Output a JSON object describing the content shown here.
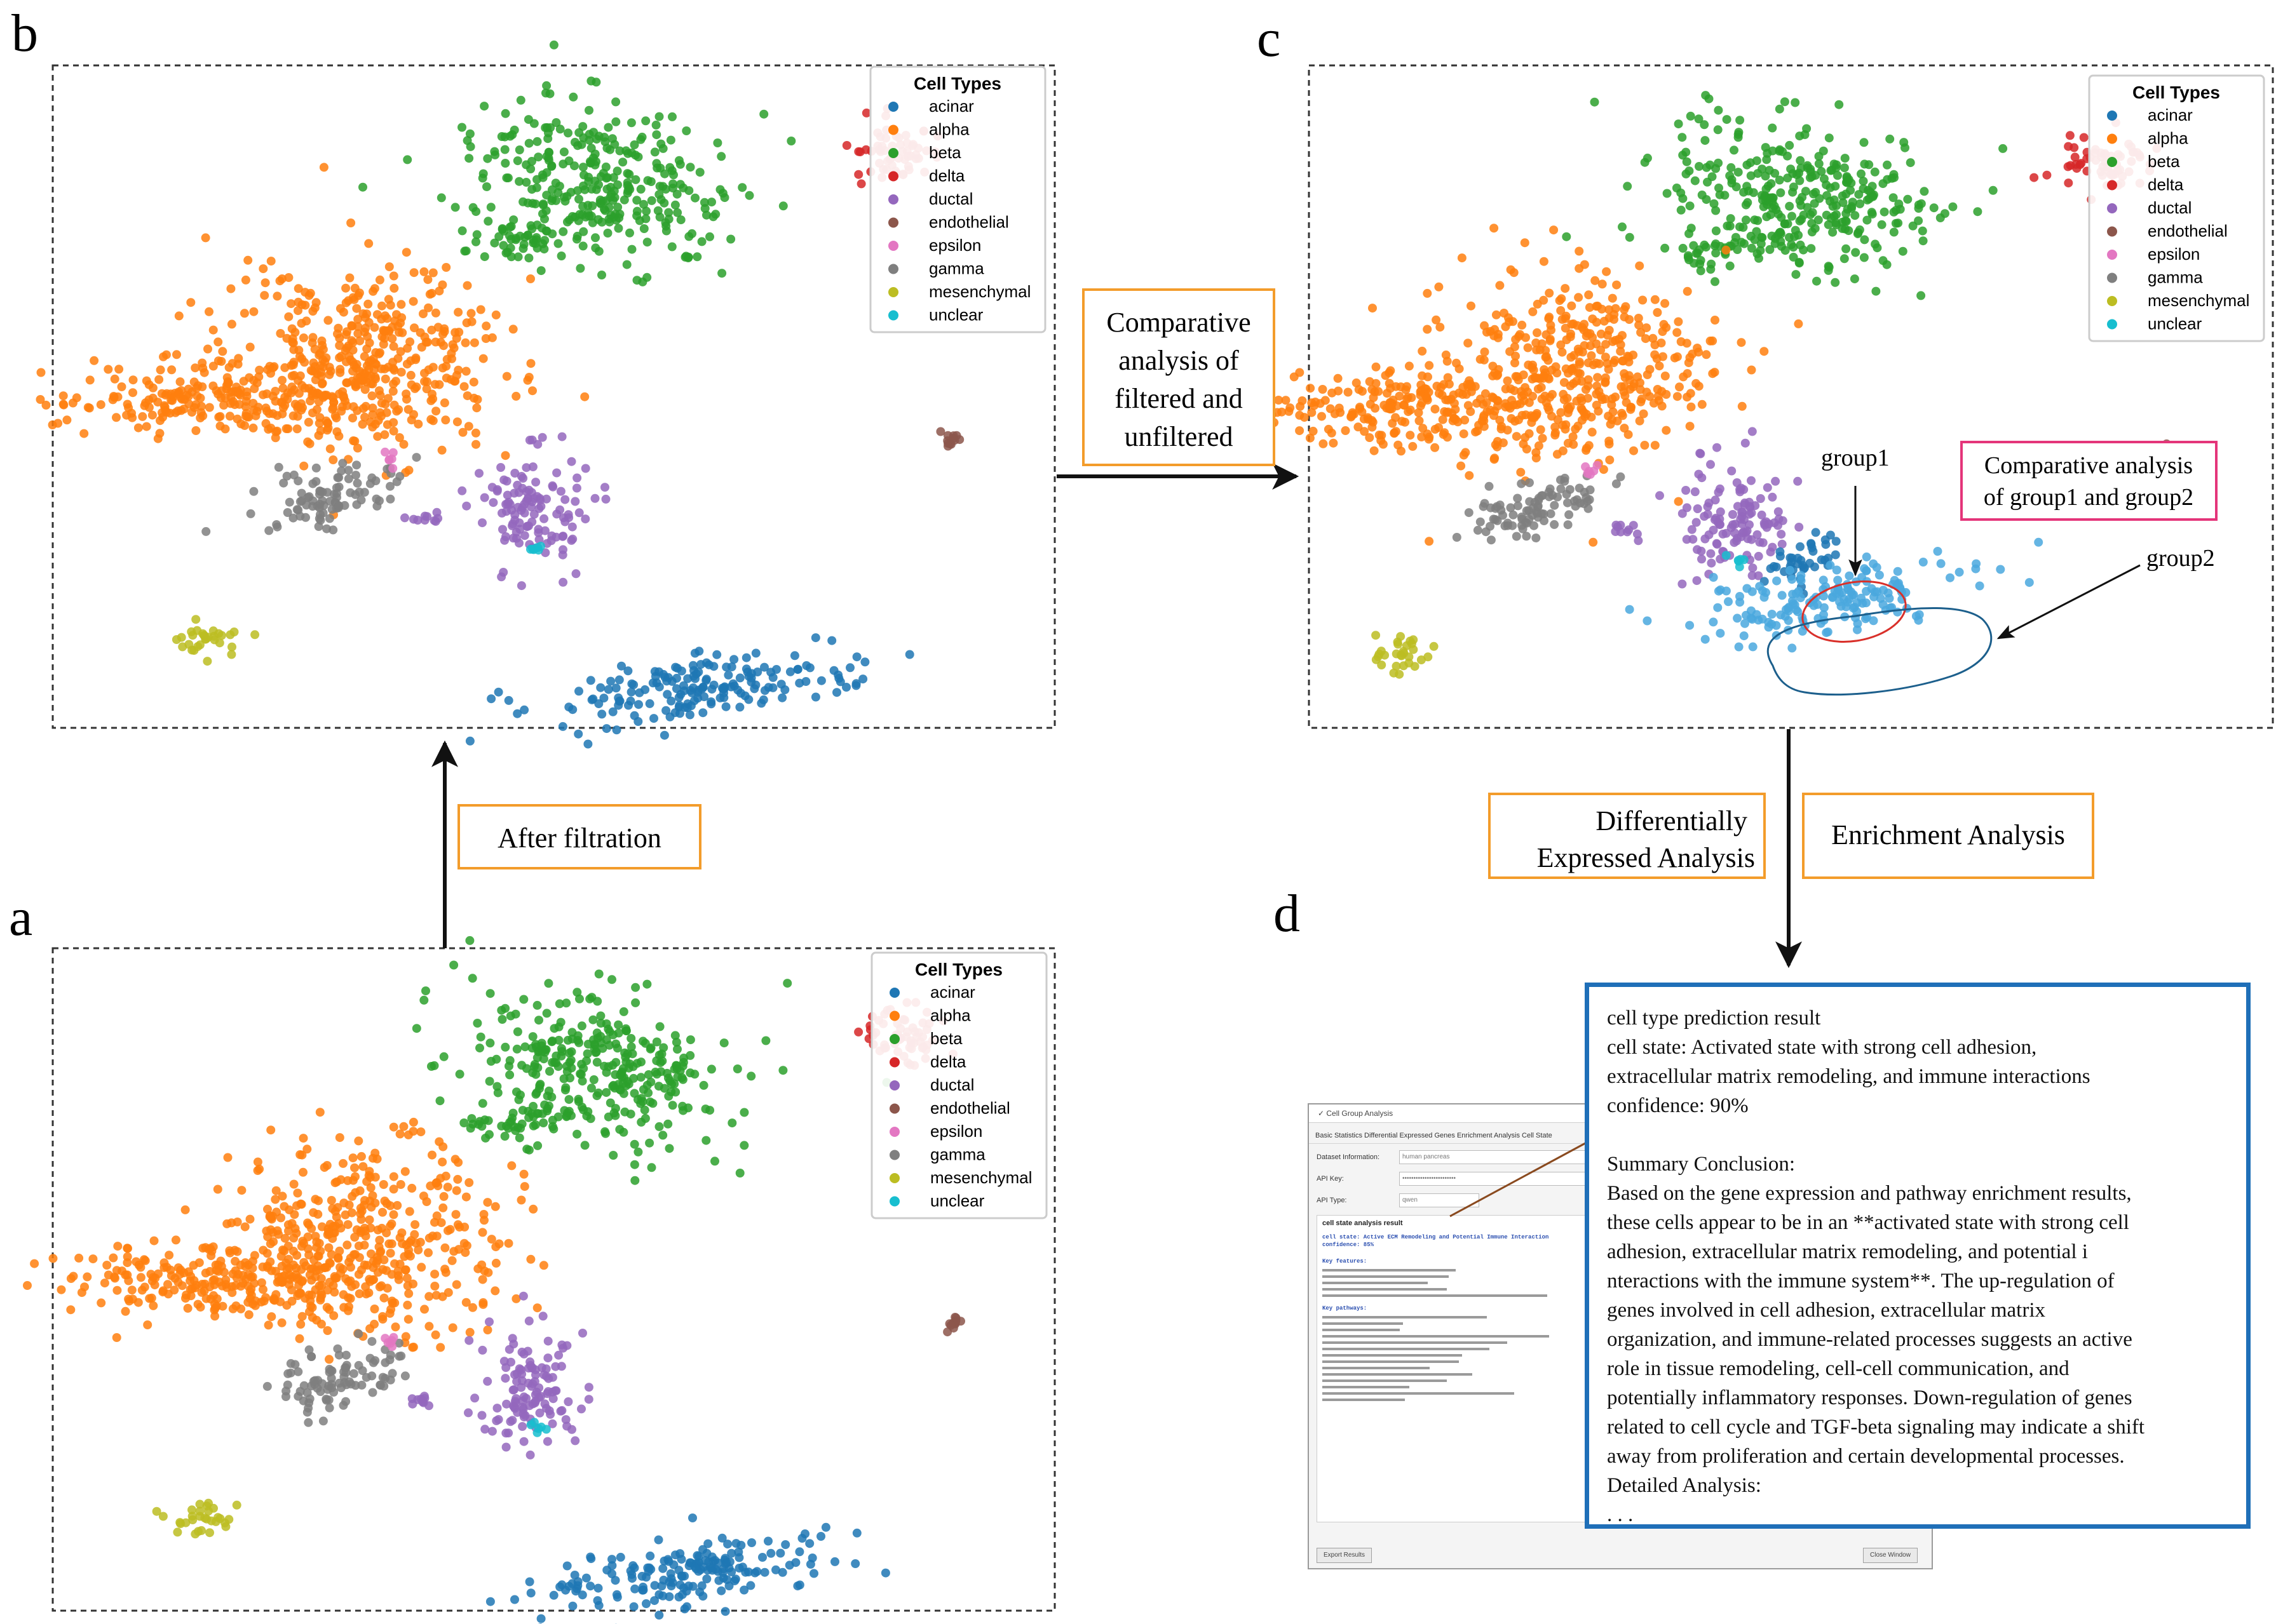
{
  "panels": {
    "a": {
      "letter": "a"
    },
    "b": {
      "letter": "b"
    },
    "c": {
      "letter": "c"
    },
    "d": {
      "letter": "d"
    }
  },
  "legend": {
    "title": "Cell Types",
    "items": [
      {
        "label": "acinar",
        "color": "#1f77b4"
      },
      {
        "label": "alpha",
        "color": "#ff7f0e"
      },
      {
        "label": "beta",
        "color": "#2ca02c"
      },
      {
        "label": "delta",
        "color": "#d62728"
      },
      {
        "label": "ductal",
        "color": "#9467bd"
      },
      {
        "label": "endothelial",
        "color": "#8c564b"
      },
      {
        "label": "epsilon",
        "color": "#e377c2"
      },
      {
        "label": "gamma",
        "color": "#7f7f7f"
      },
      {
        "label": "mesenchymal",
        "color": "#bcbd22"
      },
      {
        "label": "unclear",
        "color": "#17becf"
      }
    ]
  },
  "labels": {
    "after_filtration": "After filtration",
    "comparative_filtered": [
      "Comparative",
      "analysis of",
      "filtered and",
      "unfiltered"
    ],
    "comparative_groups": [
      "Comparative analysis",
      "of group1 and group2"
    ],
    "group1": "group1",
    "group2": "group2",
    "differentially": [
      "Differentially",
      "Expressed Analysis"
    ],
    "enrichment": "Enrichment Analysis"
  },
  "colors": {
    "orange_box": "#f39c2b",
    "pink_box": "#e4357a",
    "blue_box": "#1f6fb8",
    "group1_ring": "#d9302a",
    "group2_ring": "#1c5f8c",
    "group2_points": "#4aa8de"
  },
  "app": {
    "title": "Cell Group Analysis",
    "tabs": "Basic Statistics   Differential Expressed Genes   Enrichment Analysis   Cell State",
    "dataset_label": "Dataset Information:",
    "dataset_value": "human pancreas",
    "api_key_label": "API Key:",
    "api_key_value": "••••••••••••••••••••••••",
    "api_type_label": "API Type:",
    "api_type_value": "qwen",
    "result_heading": "cell state analysis result",
    "state_line": "cell state: Active ECM Remodeling and Potential Immune Interaction",
    "confidence_line": "confidence: 85%",
    "key_features": "Key features:",
    "key_pathways": "Key pathways:",
    "export_button": "Export Results",
    "close_button": "Close Window"
  },
  "result": {
    "l1": "cell type prediction result",
    "l2": "cell state: Activated state with strong cell adhesion,",
    "l3": "extracellular matrix remodeling, and immune interactions",
    "l4": "confidence: 90%",
    "l5": "Summary Conclusion:",
    "l6": "Based on the gene expression and pathway enrichment results,",
    "l7": "these cells appear to be in an **activated state with strong cell",
    "l8": "adhesion, extracellular matrix remodeling, and potential i",
    "l9": "nteractions with the immune system**. The up-regulation of",
    "l10": "genes involved in cell adhesion, extracellular matrix",
    "l11": "organization, and immune-related processes suggests an active",
    "l12": "role in tissue remodeling, cell-cell communication, and",
    "l13": "potentially inflammatory responses. Down-regulation of genes",
    "l14": "related to cell cycle and TGF-beta signaling may indicate a shift",
    "l15": "away from proliferation and certain developmental processes.",
    "l16": "Detailed Analysis:",
    "l17": ". . ."
  }
}
